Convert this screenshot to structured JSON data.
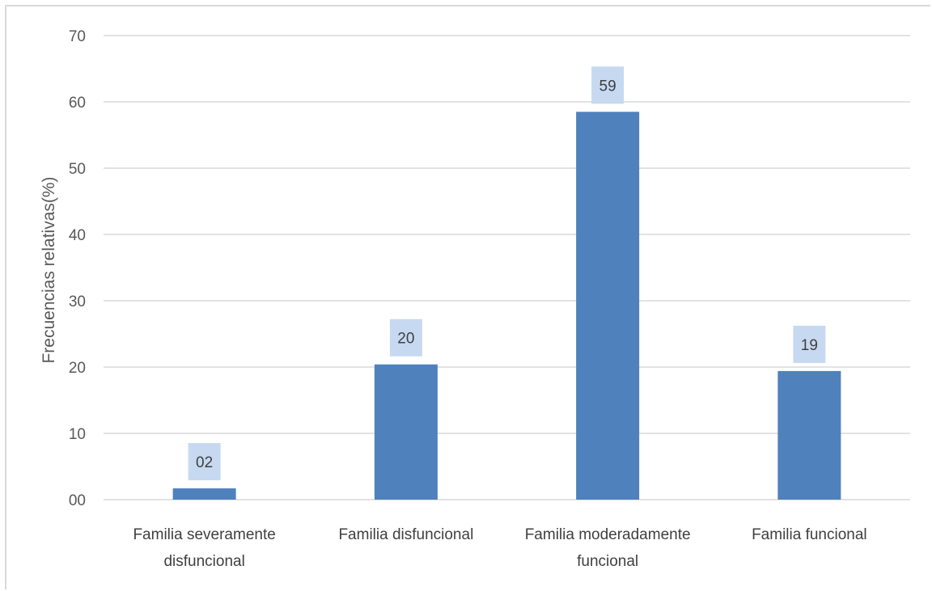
{
  "chart_data": {
    "type": "bar",
    "title": "",
    "xlabel": "",
    "ylabel": "Frecuencias relativas(%)",
    "ylim": [
      0,
      70
    ],
    "yticks": [
      0,
      10,
      20,
      30,
      40,
      50,
      60,
      70
    ],
    "ytick_labels": [
      "00",
      "10",
      "20",
      "30",
      "40",
      "50",
      "60",
      "70"
    ],
    "categories": [
      [
        "Familia severamente",
        "disfuncional"
      ],
      [
        "Familia disfuncional"
      ],
      [
        "Familia moderadamente",
        "funcional"
      ],
      [
        "Familia funcional"
      ]
    ],
    "values": [
      1.7,
      20.4,
      58.5,
      19.4
    ],
    "data_labels": [
      "02",
      "20",
      "59",
      "19"
    ],
    "grid": true,
    "legend": "none",
    "colors": {
      "bar": "#4f81bd",
      "label_box": "#c6d9f1",
      "grid": "#d9d9d9"
    }
  }
}
